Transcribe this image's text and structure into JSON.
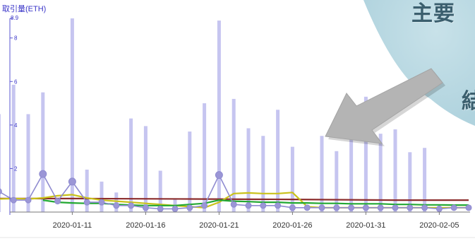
{
  "chart_data": {
    "type": "bar",
    "ylabel": "取引量(ETH)",
    "ymax_label": "8.9",
    "yticks": [
      {
        "value": 2,
        "label": "2"
      },
      {
        "value": 4,
        "label": "4"
      },
      {
        "value": 6,
        "label": "6"
      },
      {
        "value": 8,
        "label": "8"
      }
    ],
    "ylim": [
      0,
      8.9
    ],
    "xlim": [
      "2020-01-05",
      "2020-02-08"
    ],
    "xticks": [
      "2020-01-11",
      "2020-01-16",
      "2020-01-21",
      "2020-01-26",
      "2020-01-31",
      "2020-02-05"
    ],
    "grid": false,
    "bars": [
      {
        "x": "2020-01-06",
        "value": 4.5
      },
      {
        "x": "2020-01-07",
        "value": 5.85
      },
      {
        "x": "2020-01-08",
        "value": 4.5
      },
      {
        "x": "2020-01-09",
        "value": 5.5
      },
      {
        "x": "2020-01-11",
        "value": 8.9
      },
      {
        "x": "2020-01-12",
        "value": 1.95
      },
      {
        "x": "2020-01-13",
        "value": 1.4
      },
      {
        "x": "2020-01-14",
        "value": 0.9
      },
      {
        "x": "2020-01-15",
        "value": 4.3
      },
      {
        "x": "2020-01-16",
        "value": 3.95
      },
      {
        "x": "2020-01-17",
        "value": 1.9
      },
      {
        "x": "2020-01-18",
        "value": 0.6
      },
      {
        "x": "2020-01-19",
        "value": 3.7
      },
      {
        "x": "2020-01-20",
        "value": 5.0
      },
      {
        "x": "2020-01-21",
        "value": 8.8
      },
      {
        "x": "2020-01-22",
        "value": 5.2
      },
      {
        "x": "2020-01-23",
        "value": 3.85
      },
      {
        "x": "2020-01-24",
        "value": 3.5
      },
      {
        "x": "2020-01-25",
        "value": 4.7
      },
      {
        "x": "2020-01-26",
        "value": 3.0
      },
      {
        "x": "2020-01-28",
        "value": 3.5
      },
      {
        "x": "2020-01-29",
        "value": 2.8
      },
      {
        "x": "2020-01-30",
        "value": 4.3
      },
      {
        "x": "2020-01-31",
        "value": 5.3
      },
      {
        "x": "2020-02-01",
        "value": 3.6
      },
      {
        "x": "2020-02-02",
        "value": 3.8
      },
      {
        "x": "2020-02-03",
        "value": 2.75
      },
      {
        "x": "2020-02-04",
        "value": 2.95
      }
    ],
    "series": [
      {
        "style": "line-markers",
        "color": "#8f8bd0",
        "points": [
          [
            "2020-01-05",
            0.7
          ],
          [
            "2020-01-06",
            0.95
          ],
          [
            "2020-01-07",
            0.55
          ],
          [
            "2020-01-08",
            0.55
          ],
          [
            "2020-01-09",
            1.75
          ],
          [
            "2020-01-10",
            0.5
          ],
          [
            "2020-01-11",
            1.4
          ],
          [
            "2020-01-12",
            0.45
          ],
          [
            "2020-01-13",
            0.45
          ],
          [
            "2020-01-14",
            0.3
          ],
          [
            "2020-01-15",
            0.3
          ],
          [
            "2020-01-16",
            0.2
          ],
          [
            "2020-01-17",
            0.15
          ],
          [
            "2020-01-18",
            0.15
          ],
          [
            "2020-01-19",
            0.2
          ],
          [
            "2020-01-20",
            0.3
          ],
          [
            "2020-01-21",
            1.7
          ],
          [
            "2020-01-22",
            0.35
          ],
          [
            "2020-01-23",
            0.3
          ],
          [
            "2020-01-24",
            0.3
          ],
          [
            "2020-01-25",
            0.3
          ],
          [
            "2020-01-26",
            0.2
          ],
          [
            "2020-01-27",
            0.2
          ],
          [
            "2020-01-28",
            0.2
          ],
          [
            "2020-01-29",
            0.2
          ],
          [
            "2020-01-30",
            0.2
          ],
          [
            "2020-01-31",
            0.2
          ],
          [
            "2020-02-01",
            0.2
          ],
          [
            "2020-02-02",
            0.2
          ],
          [
            "2020-02-03",
            0.2
          ],
          [
            "2020-02-04",
            0.2
          ],
          [
            "2020-02-05",
            0.15
          ],
          [
            "2020-02-06",
            0.2
          ],
          [
            "2020-02-07",
            0.2
          ]
        ]
      },
      {
        "style": "line",
        "color": "#c9c21a",
        "points": [
          [
            "2020-01-05",
            0.6
          ],
          [
            "2020-01-06",
            0.6
          ],
          [
            "2020-01-07",
            0.62
          ],
          [
            "2020-01-08",
            0.6
          ],
          [
            "2020-01-09",
            0.65
          ],
          [
            "2020-01-10",
            0.75
          ],
          [
            "2020-01-11",
            0.8
          ],
          [
            "2020-01-12",
            0.65
          ],
          [
            "2020-01-13",
            0.55
          ],
          [
            "2020-01-14",
            0.5
          ],
          [
            "2020-01-15",
            0.45
          ],
          [
            "2020-01-16",
            0.4
          ],
          [
            "2020-01-17",
            0.35
          ],
          [
            "2020-01-18",
            0.3
          ],
          [
            "2020-01-19",
            0.25
          ],
          [
            "2020-01-20",
            0.2
          ],
          [
            "2020-01-21",
            0.45
          ],
          [
            "2020-01-22",
            0.85
          ],
          [
            "2020-01-23",
            0.88
          ],
          [
            "2020-01-24",
            0.85
          ],
          [
            "2020-01-25",
            0.85
          ],
          [
            "2020-01-26",
            0.9
          ],
          [
            "2020-01-27",
            0.25
          ],
          [
            "2020-01-28",
            0.2
          ],
          [
            "2020-01-29",
            0.2
          ],
          [
            "2020-01-30",
            0.2
          ],
          [
            "2020-01-31",
            0.2
          ],
          [
            "2020-02-01",
            0.2
          ],
          [
            "2020-02-02",
            0.2
          ],
          [
            "2020-02-03",
            0.2
          ],
          [
            "2020-02-04",
            0.2
          ],
          [
            "2020-02-05",
            0.2
          ],
          [
            "2020-02-06",
            0.2
          ],
          [
            "2020-02-07",
            0.2
          ]
        ]
      },
      {
        "style": "line",
        "color": "#22a832",
        "points": [
          [
            "2020-01-09",
            0.55
          ],
          [
            "2020-01-10",
            0.45
          ],
          [
            "2020-01-11",
            0.42
          ],
          [
            "2020-01-12",
            0.4
          ],
          [
            "2020-01-13",
            0.4
          ],
          [
            "2020-01-14",
            0.35
          ],
          [
            "2020-01-15",
            0.32
          ],
          [
            "2020-01-16",
            0.3
          ],
          [
            "2020-01-17",
            0.3
          ],
          [
            "2020-01-18",
            0.3
          ],
          [
            "2020-01-19",
            0.35
          ],
          [
            "2020-01-20",
            0.4
          ],
          [
            "2020-01-21",
            0.55
          ],
          [
            "2020-01-22",
            0.5
          ],
          [
            "2020-01-23",
            0.48
          ],
          [
            "2020-01-24",
            0.45
          ],
          [
            "2020-01-25",
            0.45
          ],
          [
            "2020-01-26",
            0.42
          ],
          [
            "2020-01-27",
            0.42
          ],
          [
            "2020-01-28",
            0.4
          ],
          [
            "2020-01-29",
            0.4
          ],
          [
            "2020-01-30",
            0.38
          ],
          [
            "2020-01-31",
            0.38
          ],
          [
            "2020-02-01",
            0.38
          ],
          [
            "2020-02-02",
            0.35
          ],
          [
            "2020-02-03",
            0.35
          ],
          [
            "2020-02-04",
            0.33
          ],
          [
            "2020-02-05",
            0.33
          ],
          [
            "2020-02-06",
            0.32
          ],
          [
            "2020-02-07",
            0.32
          ]
        ]
      },
      {
        "style": "line",
        "color": "#8b2c2c",
        "points": [
          [
            "2020-01-05",
            0.62
          ],
          [
            "2020-01-12",
            0.62
          ],
          [
            "2020-01-19",
            0.6
          ],
          [
            "2020-01-26",
            0.58
          ],
          [
            "2020-02-02",
            0.55
          ],
          [
            "2020-02-07",
            0.55
          ]
        ]
      }
    ]
  },
  "callout": {
    "title": "主要",
    "subtitle": "結",
    "disc_color": "#a9cfdb",
    "arrow_color": "#b4b4b4"
  }
}
